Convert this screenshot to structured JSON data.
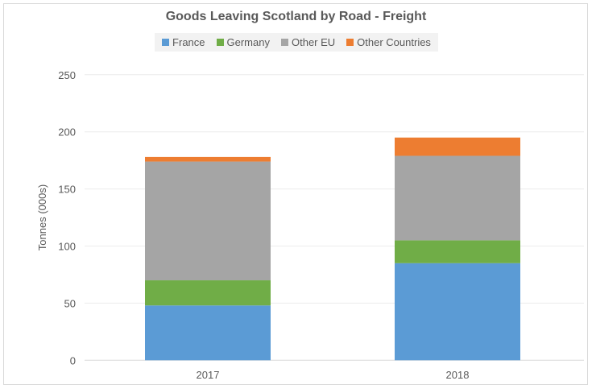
{
  "chart_data": {
    "type": "bar",
    "stacked": true,
    "title": "Goods Leaving Scotland by Road - Freight",
    "xlabel": "",
    "ylabel": "Tonnes (000s)",
    "ylim": [
      0,
      250
    ],
    "yticks": [
      0,
      50,
      100,
      150,
      200,
      250
    ],
    "grid": true,
    "legend_position": "top",
    "categories": [
      "2017",
      "2018"
    ],
    "series": [
      {
        "name": "France",
        "color": "#5b9bd5",
        "values": [
          48,
          85
        ]
      },
      {
        "name": "Germany",
        "color": "#70ad47",
        "values": [
          22,
          20
        ]
      },
      {
        "name": "Other EU",
        "color": "#a5a5a5",
        "values": [
          104,
          74
        ]
      },
      {
        "name": "Other Countries",
        "color": "#ed7d31",
        "values": [
          4,
          16
        ]
      }
    ]
  }
}
